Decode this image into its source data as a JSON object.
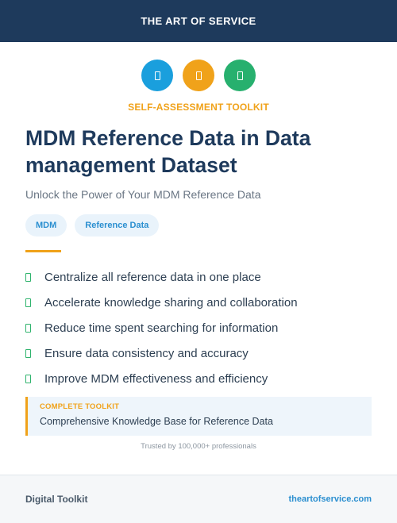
{
  "header": {
    "brand": "THE ART OF SERVICE"
  },
  "icons": [
    {
      "name": "blue-doc-icon",
      "color": "#1a9fdd"
    },
    {
      "name": "orange-doc-icon",
      "color": "#f0a21a"
    },
    {
      "name": "green-doc-icon",
      "color": "#27b06e"
    }
  ],
  "kit_label": "SELF-ASSESSMENT TOOLKIT",
  "title": "MDM Reference Data in Data management Dataset",
  "subtitle": "Unlock the Power of Your MDM Reference Data",
  "tags": [
    "MDM",
    "Reference Data"
  ],
  "features": [
    "Centralize all reference data in one place",
    "Accelerate knowledge sharing and collaboration",
    "Reduce time spent searching for information",
    "Ensure data consistency and accuracy",
    "Improve MDM effectiveness and efficiency"
  ],
  "toolkit": {
    "label": "COMPLETE TOOLKIT",
    "description": "Comprehensive Knowledge Base for Reference Data"
  },
  "trusted": "Trusted by 100,000+ professionals",
  "footer": {
    "left": "Digital Toolkit",
    "right": "theartofservice.com"
  },
  "colors": {
    "navy": "#1e3a5c",
    "accent_orange": "#f0a21a",
    "accent_blue": "#2b8fd0",
    "check_green": "#2eb36c"
  }
}
